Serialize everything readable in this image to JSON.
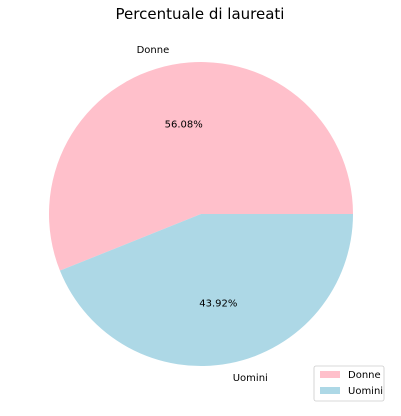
{
  "chart_data": {
    "type": "pie",
    "title": "Percentuale di laureati",
    "categories": [
      "Donne",
      "Uomini"
    ],
    "values": [
      56.08,
      43.92
    ],
    "percent_labels": [
      "56.08%",
      "43.92%"
    ],
    "colors": [
      "#ffc0cb",
      "#add8e6"
    ],
    "start_angle_deg": 0,
    "direction": "counterclockwise",
    "legend": {
      "placement": "lower-right",
      "entries": [
        "Donne",
        "Uomini"
      ]
    }
  }
}
